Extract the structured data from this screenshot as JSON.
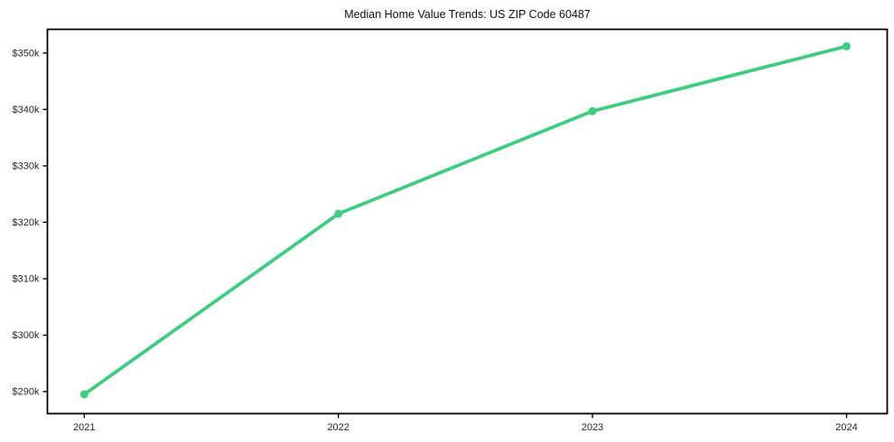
{
  "chart_data": {
    "type": "line",
    "title": "Median Home Value Trends: US ZIP Code 60487",
    "xlabel": "",
    "ylabel": "",
    "categories": [
      "2021",
      "2022",
      "2023",
      "2024"
    ],
    "series": [
      {
        "name": "Median Home Value",
        "x": [
          2021,
          2022,
          2023,
          2024
        ],
        "values": [
          289500,
          321500,
          339700,
          351200
        ],
        "color": "#3ecc81",
        "marker": "circle"
      }
    ],
    "x_ticks": [
      2021,
      2022,
      2023,
      2024
    ],
    "x_tick_labels": [
      "2021",
      "2022",
      "2023",
      "2024"
    ],
    "y_ticks": [
      290000,
      300000,
      310000,
      320000,
      330000,
      340000,
      350000
    ],
    "y_tick_labels": [
      "$290k",
      "$300k",
      "$310k",
      "$320k",
      "$330k",
      "$340k",
      "$350k"
    ],
    "xlim": [
      2020.855,
      2024.16
    ],
    "ylim": [
      286100,
      354200
    ],
    "grid": false,
    "legend": false,
    "frame_color": "#000000",
    "tick_label_color": "#262626",
    "title_color": "#111111",
    "background": "#ffffff"
  }
}
